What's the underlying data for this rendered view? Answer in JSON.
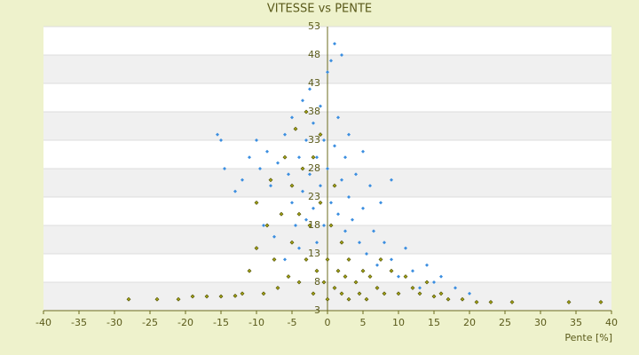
{
  "chart_data": {
    "type": "scatter",
    "title": "VITESSE vs PENTE",
    "x_label": "Pente [%]",
    "xlim": [
      -40,
      40
    ],
    "xticks": [
      -40,
      -35,
      -30,
      -25,
      -20,
      -15,
      -10,
      -5,
      0,
      5,
      10,
      15,
      20,
      25,
      30,
      35,
      40
    ],
    "ylim": [
      3,
      53
    ],
    "yticks": [
      3,
      8,
      13,
      18,
      23,
      28,
      33,
      38,
      43,
      48,
      53
    ],
    "grid": true,
    "series": [
      {
        "color": "#3b8ee0",
        "x": [
          -15.5,
          -15,
          -14.5,
          -13,
          -12,
          -11,
          -10,
          -10,
          -9.5,
          -9,
          -8.5,
          -8,
          -7.5,
          -7,
          -6.5,
          -6,
          -6,
          -5.5,
          -5,
          -5,
          -4.5,
          -4,
          -4,
          -3.5,
          -3.5,
          -3,
          -3,
          -2.5,
          -2.5,
          -2,
          -2,
          -1.5,
          -1.5,
          -1,
          -1,
          -0.5,
          -0.5,
          0,
          0,
          0.5,
          0.5,
          1,
          1,
          1.5,
          1.5,
          2,
          2,
          2.5,
          2.5,
          3,
          3,
          3.5,
          4,
          4.5,
          5,
          5,
          5.5,
          6,
          6.5,
          7,
          7.5,
          8,
          9,
          9,
          10,
          11,
          12,
          13,
          14,
          15,
          16,
          18,
          20
        ],
        "values": [
          34,
          33,
          28,
          24,
          26,
          30,
          33,
          22,
          28,
          18,
          31,
          25,
          16,
          29,
          20,
          34,
          12,
          27,
          22,
          37,
          18,
          30,
          14,
          40,
          24,
          19,
          33,
          42,
          27,
          21,
          36,
          15,
          30,
          25,
          39,
          18,
          33,
          28,
          45,
          22,
          47,
          50,
          32,
          20,
          37,
          26,
          48,
          17,
          30,
          23,
          34,
          19,
          27,
          15,
          21,
          31,
          13,
          25,
          17,
          11,
          22,
          15,
          26,
          12,
          9,
          14,
          10,
          7,
          11,
          8,
          9,
          7,
          6
        ]
      },
      {
        "color": "#a3a314",
        "x": [
          -28,
          -24,
          -21,
          -19,
          -17,
          -15,
          -13,
          -12,
          -11,
          -10,
          -10,
          -9,
          -8.5,
          -8,
          -7.5,
          -7,
          -6.5,
          -6,
          -5.5,
          -5,
          -5,
          -4.5,
          -4,
          -4,
          -3.5,
          -3,
          -3,
          -2.5,
          -2,
          -2,
          -1.5,
          -1,
          -1,
          -0.5,
          0,
          0,
          0.5,
          1,
          1,
          1.5,
          2,
          2,
          2.5,
          3,
          3,
          4,
          4.5,
          5,
          5.5,
          6,
          7,
          7.5,
          8,
          9,
          10,
          11,
          12,
          13,
          14,
          15,
          16,
          17,
          19,
          21,
          23,
          26,
          34,
          38.5
        ],
        "values": [
          5,
          5,
          5,
          5.5,
          5.5,
          5.5,
          5.6,
          6,
          10,
          14,
          22,
          6,
          18,
          26,
          12,
          7,
          20,
          30,
          9,
          15,
          25,
          35,
          8,
          20,
          28,
          12,
          38,
          18,
          6,
          30,
          10,
          22,
          34,
          8,
          12,
          5,
          18,
          7,
          25,
          10,
          6,
          15,
          9,
          5,
          12,
          8,
          6,
          10,
          5,
          9,
          7,
          12,
          6,
          10,
          6,
          9,
          7,
          6,
          8,
          5.5,
          6,
          5,
          5,
          4.5,
          4.5,
          4.5,
          4.5,
          4.5
        ]
      }
    ]
  }
}
